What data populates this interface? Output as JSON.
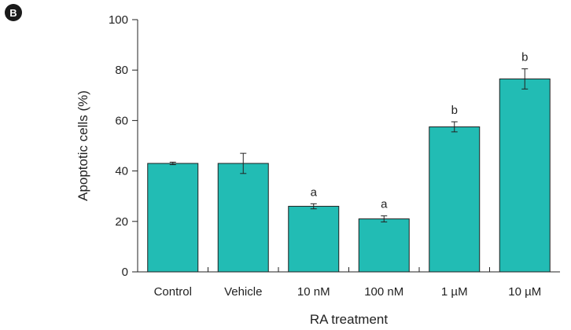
{
  "panel_label": "B",
  "colors": {
    "bar_fill": "#22bcb4",
    "axis": "#222222"
  },
  "chart_data": {
    "type": "bar",
    "title": "",
    "xlabel": "RA treatment",
    "ylabel": "Apoptotic cells (%)",
    "ylim": [
      0,
      100
    ],
    "yticks": [
      "0",
      "20",
      "40",
      "60",
      "80",
      "100"
    ],
    "grid": false,
    "categories": [
      "Control",
      "Vehicle",
      "10 nM",
      "100 nM",
      "1 µM",
      "10 µM"
    ],
    "values": [
      43,
      43,
      26,
      21,
      57.5,
      76.5
    ],
    "errors": [
      0.5,
      4,
      1,
      1.2,
      2,
      4
    ],
    "annotations": [
      "",
      "",
      "a",
      "a",
      "b",
      "b"
    ]
  }
}
